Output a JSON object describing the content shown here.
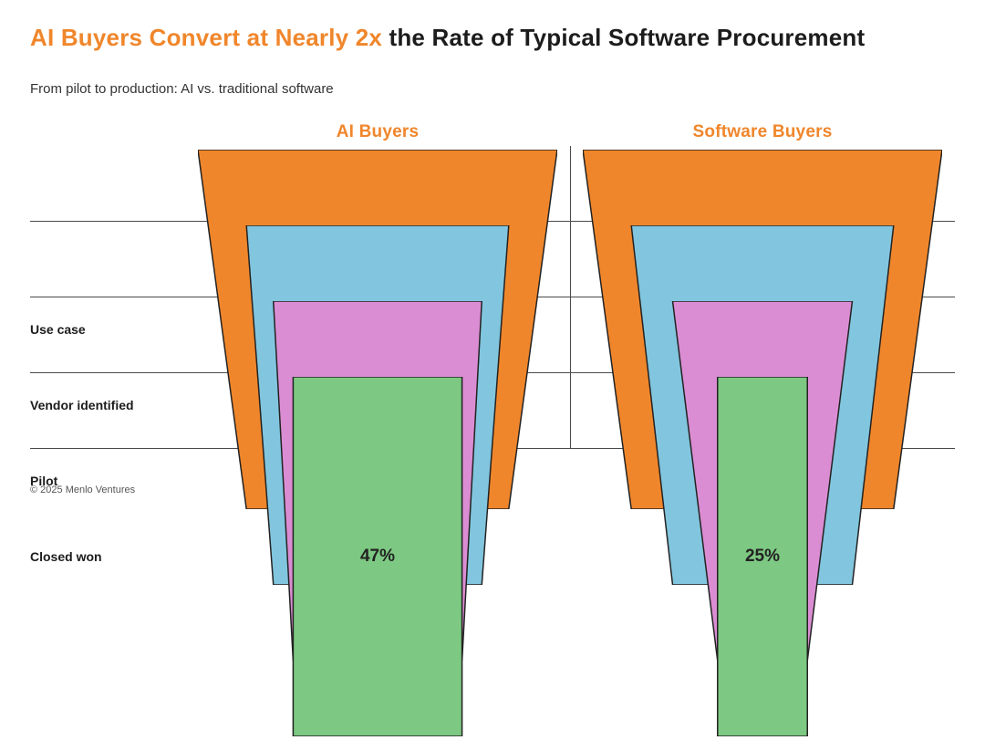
{
  "header": {
    "title_highlight": "AI Buyers Convert at Nearly 2x",
    "title_rest": " the Rate of Typical Software Procurement",
    "subtitle": "From pilot to production: AI vs. traditional software"
  },
  "footer": {
    "copyright": "© 2025 Menlo Ventures"
  },
  "chart_data": {
    "type": "funnel",
    "stages": [
      "Use case",
      "Vendor identified",
      "Pilot",
      "Closed won"
    ],
    "series": [
      {
        "name": "AI Buyers",
        "values": [
          100,
          73,
          58,
          47
        ]
      },
      {
        "name": "Software Buyers",
        "values": [
          100,
          73,
          50,
          25
        ]
      }
    ],
    "value_suffix": "%",
    "stage_colors": [
      "#F0862B",
      "#82C5DE",
      "#DB8DD3",
      "#7DC882"
    ],
    "outline_color": "#222222",
    "accent_color": "#F0862B",
    "legend_position": "top",
    "grid": "horizontal-dividers"
  }
}
